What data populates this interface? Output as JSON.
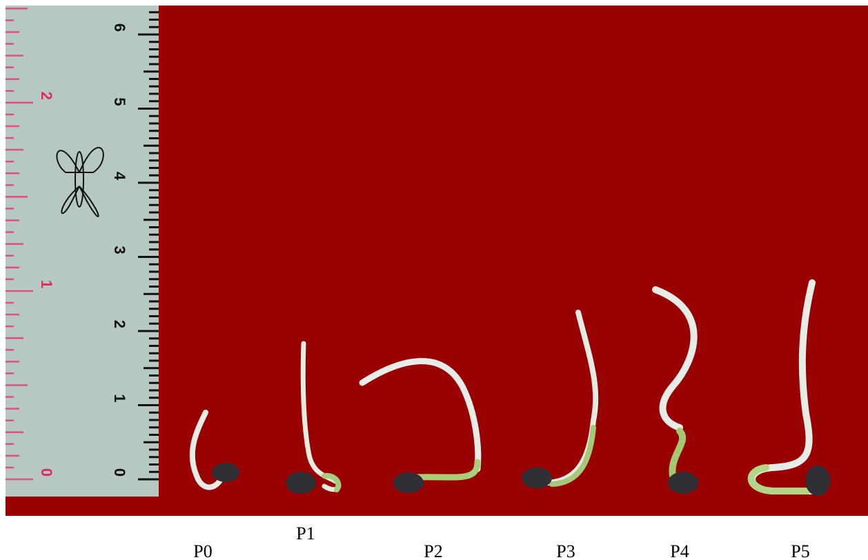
{
  "labels": [
    "P0",
    "P1",
    "P2",
    "P3",
    "P4",
    "P5"
  ],
  "ruler": {
    "cm_labels": [
      "0",
      "1",
      "2",
      "3",
      "4",
      "5",
      "6"
    ],
    "inch_labels": [
      "0",
      "1",
      "2"
    ]
  }
}
